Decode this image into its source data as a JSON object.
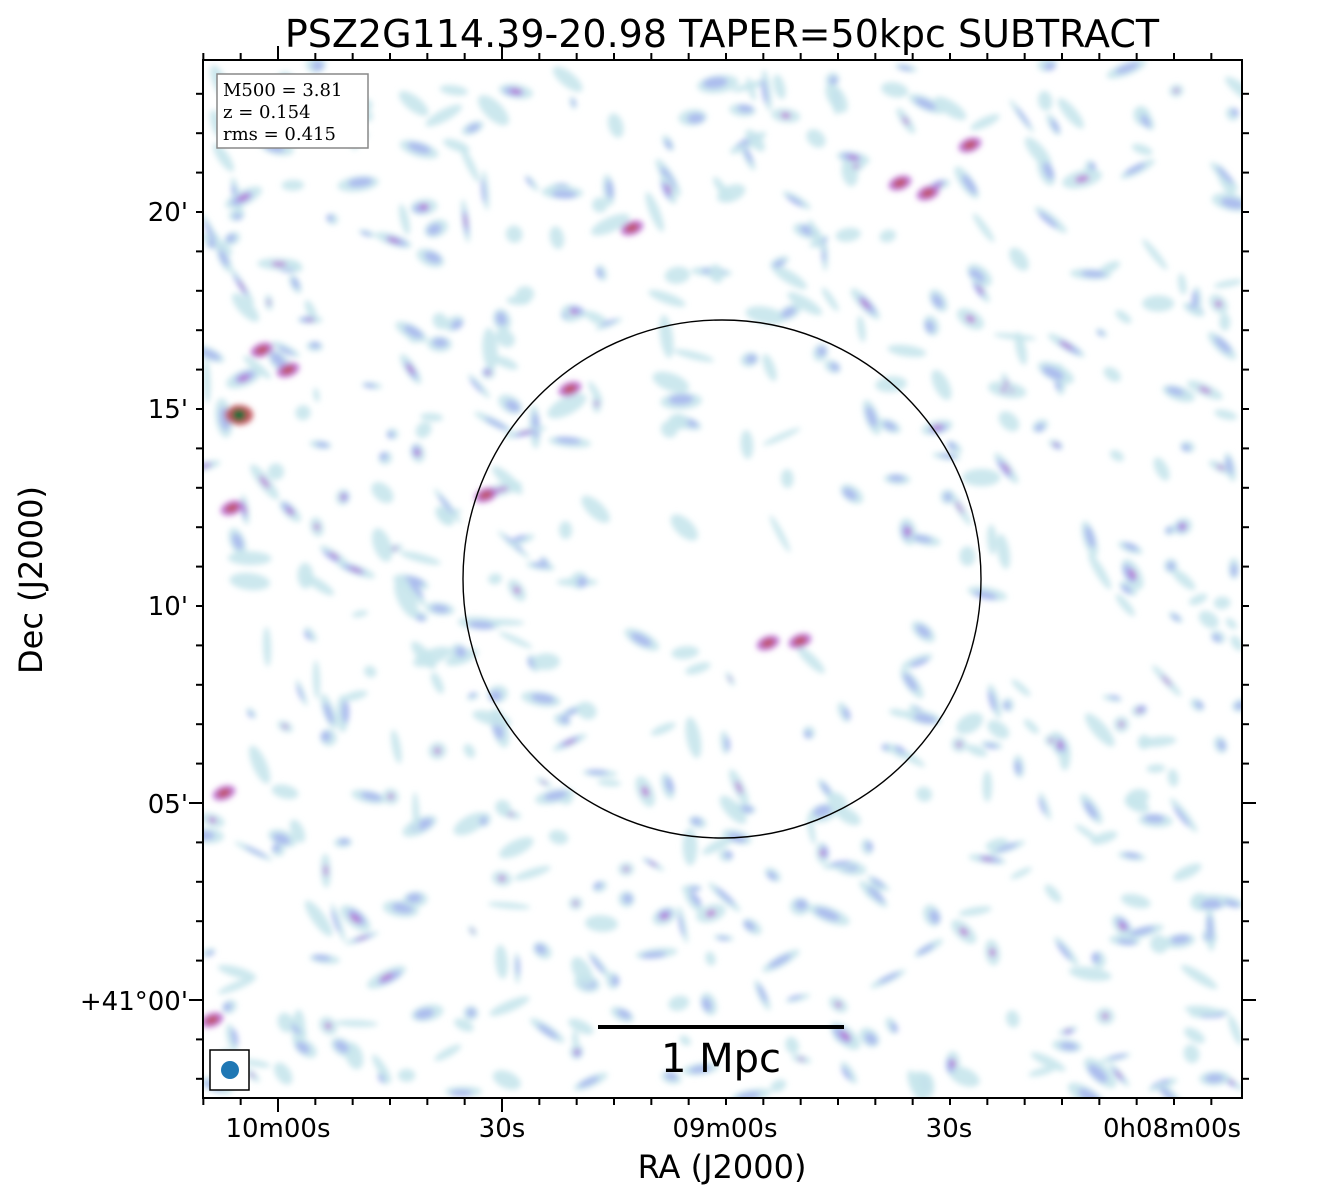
{
  "chart_data": {
    "type": "image",
    "title": "PSZ2G114.39-20.98 TAPER=50kpc SUBTRACT",
    "xlabel": "RA (J2000)",
    "ylabel": "Dec (J2000)",
    "x_ticks": [
      "10m00s",
      "30s",
      "09m00s",
      "30s",
      "0h08m00s"
    ],
    "y_ticks": [
      "+41°00'",
      "05'",
      "10'",
      "15'",
      "20'"
    ],
    "info_box": [
      "M500 = 3.81",
      "z = 0.154",
      "rms = 0.415"
    ],
    "scale_bar": "1 Mpc",
    "colors": {
      "low": "#c6e6ec",
      "mid": "#a9b7ee",
      "high": "#b96bd2",
      "peak": "#c0505a",
      "core": "#1e6b3a",
      "beam": "#1f77b4"
    }
  }
}
